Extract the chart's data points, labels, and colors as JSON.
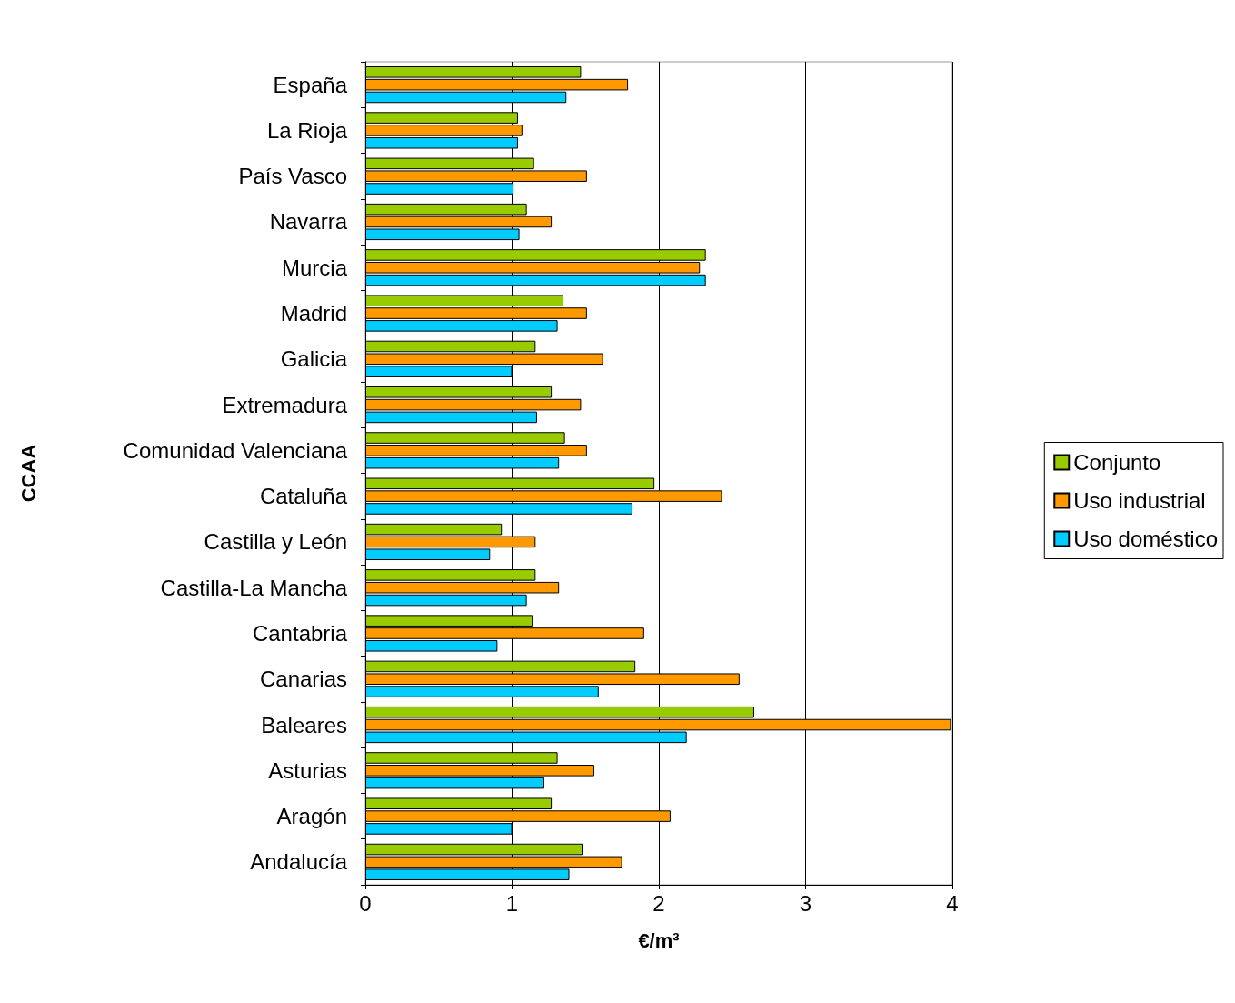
{
  "chart_data": {
    "type": "bar",
    "orientation": "horizontal",
    "xlabel": "€/m³",
    "ylabel": "CCAA",
    "categories": [
      "España",
      "La Rioja",
      "País Vasco",
      "Navarra",
      "Murcia",
      "Madrid",
      "Galicia",
      "Extremadura",
      "Comunidad Valenciana",
      "Cataluña",
      "Castilla y León",
      "Castilla-La Mancha",
      "Cantabria",
      "Canarias",
      "Baleares",
      "Asturias",
      "Aragón",
      "Andalucía"
    ],
    "series": [
      {
        "name": "Conjunto",
        "color": "#99cc00",
        "values": [
          1.47,
          1.04,
          1.15,
          1.1,
          2.32,
          1.35,
          1.16,
          1.27,
          1.36,
          1.97,
          0.93,
          1.16,
          1.14,
          1.84,
          2.65,
          1.31,
          1.27,
          1.48
        ]
      },
      {
        "name": "Uso industrial",
        "color": "#ff9900",
        "values": [
          1.79,
          1.07,
          1.51,
          1.27,
          2.28,
          1.51,
          1.62,
          1.47,
          1.51,
          2.43,
          1.16,
          1.32,
          1.9,
          2.55,
          3.99,
          1.56,
          2.08,
          1.75
        ]
      },
      {
        "name": "Uso doméstico",
        "color": "#00ccff",
        "values": [
          1.37,
          1.04,
          1.01,
          1.05,
          2.32,
          1.31,
          1.0,
          1.17,
          1.32,
          1.82,
          0.85,
          1.1,
          0.9,
          1.59,
          2.19,
          1.22,
          1.0,
          1.39
        ]
      }
    ],
    "xlim": [
      0,
      4
    ],
    "xticks": [
      0,
      1,
      2,
      3,
      4
    ],
    "grid": "x",
    "legend": "right"
  }
}
